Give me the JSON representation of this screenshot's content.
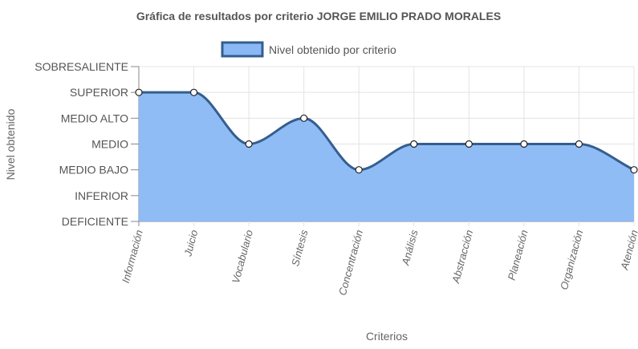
{
  "chart_data": {
    "type": "area",
    "title": "Gráfica de resultados por criterio JORGE EMILIO PRADO MORALES",
    "xlabel": "Criterios",
    "ylabel": "Nivel obtenido",
    "categories": [
      "Información",
      "Juicio",
      "Vocabulario",
      "Síntesis",
      "Concentración",
      "Análisis",
      "Abstracción",
      "Planeación",
      "Organización",
      "Atención"
    ],
    "y_levels": [
      "DEFICIENTE",
      "INFERIOR",
      "MEDIO BAJO",
      "MEDIO",
      "MEDIO ALTO",
      "SUPERIOR",
      "SOBRESALIENTE"
    ],
    "ylim": [
      0,
      6
    ],
    "series": [
      {
        "name": "Nivel obtenido por criterio",
        "values": [
          5,
          5,
          3,
          4,
          2,
          3,
          3,
          3,
          3,
          2
        ]
      }
    ],
    "legend_position": "top",
    "grid": true,
    "colors": {
      "fill": "#8ab8f6",
      "line": "#345e8e",
      "grid": "#e3e3e3",
      "axis": "#888888"
    }
  }
}
